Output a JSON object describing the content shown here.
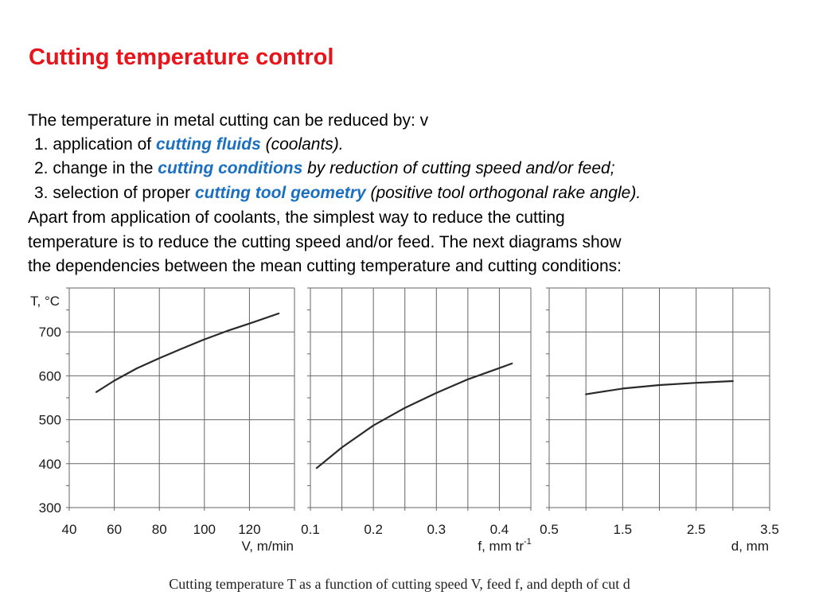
{
  "slide": {
    "title": "Cutting temperature control",
    "intro": "The temperature in metal cutting can be reduced by: v",
    "items": [
      {
        "prefix": "1. application of ",
        "key": "cutting fluids",
        "suffix": " (coolants)."
      },
      {
        "prefix": "2. change in the ",
        "key": "cutting conditions",
        "suffix": " by reduction of cutting speed and/or feed;"
      },
      {
        "prefix": "3. selection of proper ",
        "key": "cutting tool geometry",
        "suffix": " (positive tool orthogonal rake angle)."
      }
    ],
    "paragraph": [
      "Apart from application of coolants, the simplest way to reduce the cutting",
      "temperature is to reduce the cutting speed and/or feed. The next diagrams show",
      "the dependencies between the mean cutting temperature and cutting conditions:"
    ],
    "caption": "Cutting temperature T as a function of cutting speed V, feed f, and depth of cut d"
  },
  "colors": {
    "title": "#e8141a",
    "keyword": "#1a6fc0",
    "curve": "#2a2a2a",
    "grid": "#666666"
  },
  "chart_data": [
    {
      "type": "line",
      "ylabel": "T, °C",
      "xlabel": "V, m/min",
      "xlim": [
        40,
        140
      ],
      "ylim": [
        300,
        800
      ],
      "x_ticks": [
        "40",
        "60",
        "80",
        "100",
        "120"
      ],
      "y_ticks": [
        "300",
        "400",
        "500",
        "600",
        "700"
      ],
      "x_grid": [
        40,
        60,
        80,
        100,
        120,
        140
      ],
      "y_grid": [
        300,
        400,
        500,
        600,
        700,
        800
      ],
      "grid": true,
      "x": [
        52,
        60,
        70,
        80,
        90,
        100,
        110,
        120,
        133
      ],
      "y": [
        563,
        589,
        617,
        640,
        662,
        683,
        702,
        719,
        742
      ]
    },
    {
      "type": "line",
      "xlabel": "f, mm tr",
      "xlabel_sup": "-1",
      "xlim": [
        0.1,
        0.45
      ],
      "ylim": [
        300,
        800
      ],
      "x_ticks": [
        "0.1",
        "0.2",
        "0.3",
        "0.4"
      ],
      "x_tick_values": [
        0.1,
        0.2,
        0.3,
        0.4
      ],
      "x_grid": [
        0.1,
        0.15,
        0.2,
        0.25,
        0.3,
        0.35,
        0.4,
        0.45
      ],
      "y_grid": [
        300,
        400,
        500,
        600,
        700,
        800
      ],
      "grid": true,
      "x": [
        0.11,
        0.15,
        0.2,
        0.25,
        0.3,
        0.35,
        0.42
      ],
      "y": [
        390,
        437,
        487,
        527,
        561,
        592,
        628
      ]
    },
    {
      "type": "line",
      "xlabel": "d, mm",
      "xlim": [
        0.5,
        3.5
      ],
      "ylim": [
        300,
        800
      ],
      "x_ticks": [
        "0.5",
        "1.5",
        "2.5",
        "3.5"
      ],
      "x_tick_values": [
        0.5,
        1.5,
        2.5,
        3.5
      ],
      "x_grid": [
        0.5,
        1.0,
        1.5,
        2.0,
        2.5,
        3.0,
        3.5
      ],
      "y_grid": [
        300,
        400,
        500,
        600,
        700,
        800
      ],
      "grid": true,
      "x": [
        1.0,
        1.5,
        2.0,
        2.5,
        3.0
      ],
      "y": [
        558,
        571,
        579,
        584,
        588
      ]
    }
  ]
}
